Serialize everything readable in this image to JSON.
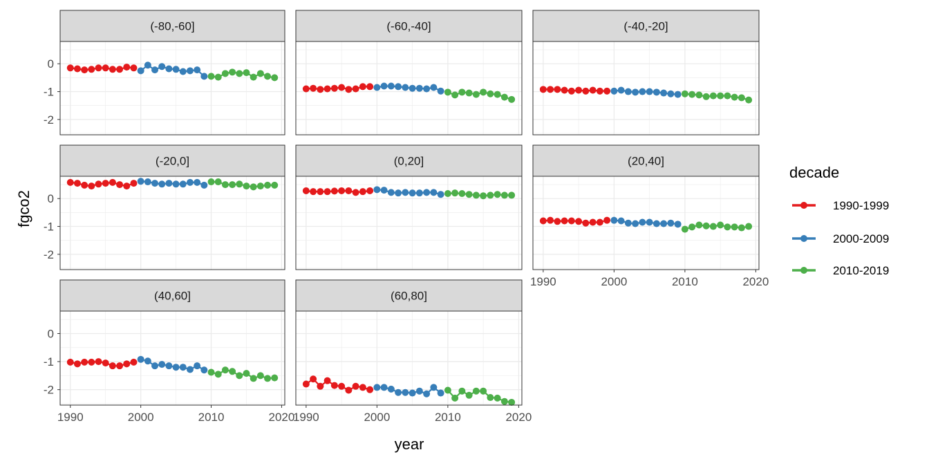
{
  "chart_data": {
    "type": "scatter",
    "layout": "facet_wrap",
    "xlabel": "year",
    "ylabel": "fgco2",
    "xlim": [
      1988.55,
      2020.45
    ],
    "ylim": [
      -2.55,
      0.8
    ],
    "xticks": [
      1990,
      2000,
      2010,
      2020
    ],
    "yticks": [
      0,
      -1,
      -2
    ],
    "grid": true,
    "legend": {
      "title": "decade",
      "placement": "right"
    },
    "series_styles": [
      {
        "name": "1990-1999",
        "color": "#E41A1C"
      },
      {
        "name": "2000-2009",
        "color": "#377EB8"
      },
      {
        "name": "2010-2019",
        "color": "#4DAF4A"
      }
    ],
    "x": [
      1990,
      1991,
      1992,
      1993,
      1994,
      1995,
      1996,
      1997,
      1998,
      1999,
      2000,
      2001,
      2002,
      2003,
      2004,
      2005,
      2006,
      2007,
      2008,
      2009,
      2010,
      2011,
      2012,
      2013,
      2014,
      2015,
      2016,
      2017,
      2018,
      2019
    ],
    "panels": [
      {
        "label": "(-80,-60]",
        "values": [
          -0.15,
          -0.18,
          -0.22,
          -0.2,
          -0.15,
          -0.15,
          -0.2,
          -0.2,
          -0.12,
          -0.15,
          -0.25,
          -0.05,
          -0.22,
          -0.1,
          -0.18,
          -0.2,
          -0.28,
          -0.25,
          -0.22,
          -0.45,
          -0.45,
          -0.48,
          -0.35,
          -0.3,
          -0.35,
          -0.32,
          -0.48,
          -0.35,
          -0.45,
          -0.5
        ]
      },
      {
        "label": "(-60,-40]",
        "values": [
          -0.9,
          -0.88,
          -0.92,
          -0.9,
          -0.88,
          -0.85,
          -0.92,
          -0.9,
          -0.82,
          -0.82,
          -0.85,
          -0.8,
          -0.8,
          -0.82,
          -0.85,
          -0.88,
          -0.88,
          -0.9,
          -0.85,
          -0.98,
          -1.02,
          -1.12,
          -1.02,
          -1.05,
          -1.1,
          -1.02,
          -1.08,
          -1.1,
          -1.2,
          -1.28
        ]
      },
      {
        "label": "(-40,-20]",
        "values": [
          -0.92,
          -0.92,
          -0.92,
          -0.95,
          -0.98,
          -0.95,
          -0.98,
          -0.95,
          -0.98,
          -0.98,
          -0.98,
          -0.95,
          -1.0,
          -1.02,
          -1.0,
          -1.0,
          -1.02,
          -1.05,
          -1.08,
          -1.1,
          -1.08,
          -1.1,
          -1.12,
          -1.18,
          -1.15,
          -1.15,
          -1.15,
          -1.2,
          -1.22,
          -1.3
        ]
      },
      {
        "label": "(-20,0]",
        "values": [
          0.58,
          0.55,
          0.48,
          0.45,
          0.52,
          0.55,
          0.58,
          0.5,
          0.45,
          0.55,
          0.62,
          0.6,
          0.55,
          0.52,
          0.55,
          0.52,
          0.52,
          0.58,
          0.58,
          0.48,
          0.6,
          0.6,
          0.5,
          0.5,
          0.52,
          0.45,
          0.42,
          0.45,
          0.48,
          0.48
        ]
      },
      {
        "label": "(0,20]",
        "values": [
          0.28,
          0.25,
          0.25,
          0.25,
          0.27,
          0.28,
          0.28,
          0.22,
          0.25,
          0.28,
          0.32,
          0.3,
          0.22,
          0.2,
          0.22,
          0.2,
          0.2,
          0.22,
          0.22,
          0.15,
          0.18,
          0.2,
          0.18,
          0.15,
          0.12,
          0.1,
          0.12,
          0.15,
          0.12,
          0.12
        ]
      },
      {
        "label": "(20,40]",
        "values": [
          -0.8,
          -0.78,
          -0.82,
          -0.8,
          -0.8,
          -0.82,
          -0.88,
          -0.85,
          -0.85,
          -0.78,
          -0.78,
          -0.8,
          -0.88,
          -0.9,
          -0.85,
          -0.85,
          -0.9,
          -0.9,
          -0.88,
          -0.92,
          -1.1,
          -1.02,
          -0.95,
          -0.98,
          -1.0,
          -0.95,
          -1.02,
          -1.02,
          -1.05,
          -1.0
        ]
      },
      {
        "label": "(40,60]",
        "values": [
          -1.02,
          -1.08,
          -1.02,
          -1.02,
          -1.0,
          -1.05,
          -1.15,
          -1.15,
          -1.08,
          -1.02,
          -0.92,
          -0.98,
          -1.15,
          -1.1,
          -1.15,
          -1.2,
          -1.2,
          -1.28,
          -1.15,
          -1.3,
          -1.38,
          -1.45,
          -1.3,
          -1.35,
          -1.5,
          -1.42,
          -1.6,
          -1.5,
          -1.6,
          -1.58
        ]
      },
      {
        "label": "(60,80]",
        "values": [
          -1.8,
          -1.62,
          -1.88,
          -1.68,
          -1.85,
          -1.88,
          -2.02,
          -1.88,
          -1.92,
          -2.0,
          -1.92,
          -1.92,
          -1.98,
          -2.1,
          -2.1,
          -2.12,
          -2.05,
          -2.15,
          -1.92,
          -2.12,
          -2.02,
          -2.3,
          -2.05,
          -2.2,
          -2.05,
          -2.05,
          -2.28,
          -2.3,
          -2.42,
          -2.45
        ]
      }
    ]
  }
}
